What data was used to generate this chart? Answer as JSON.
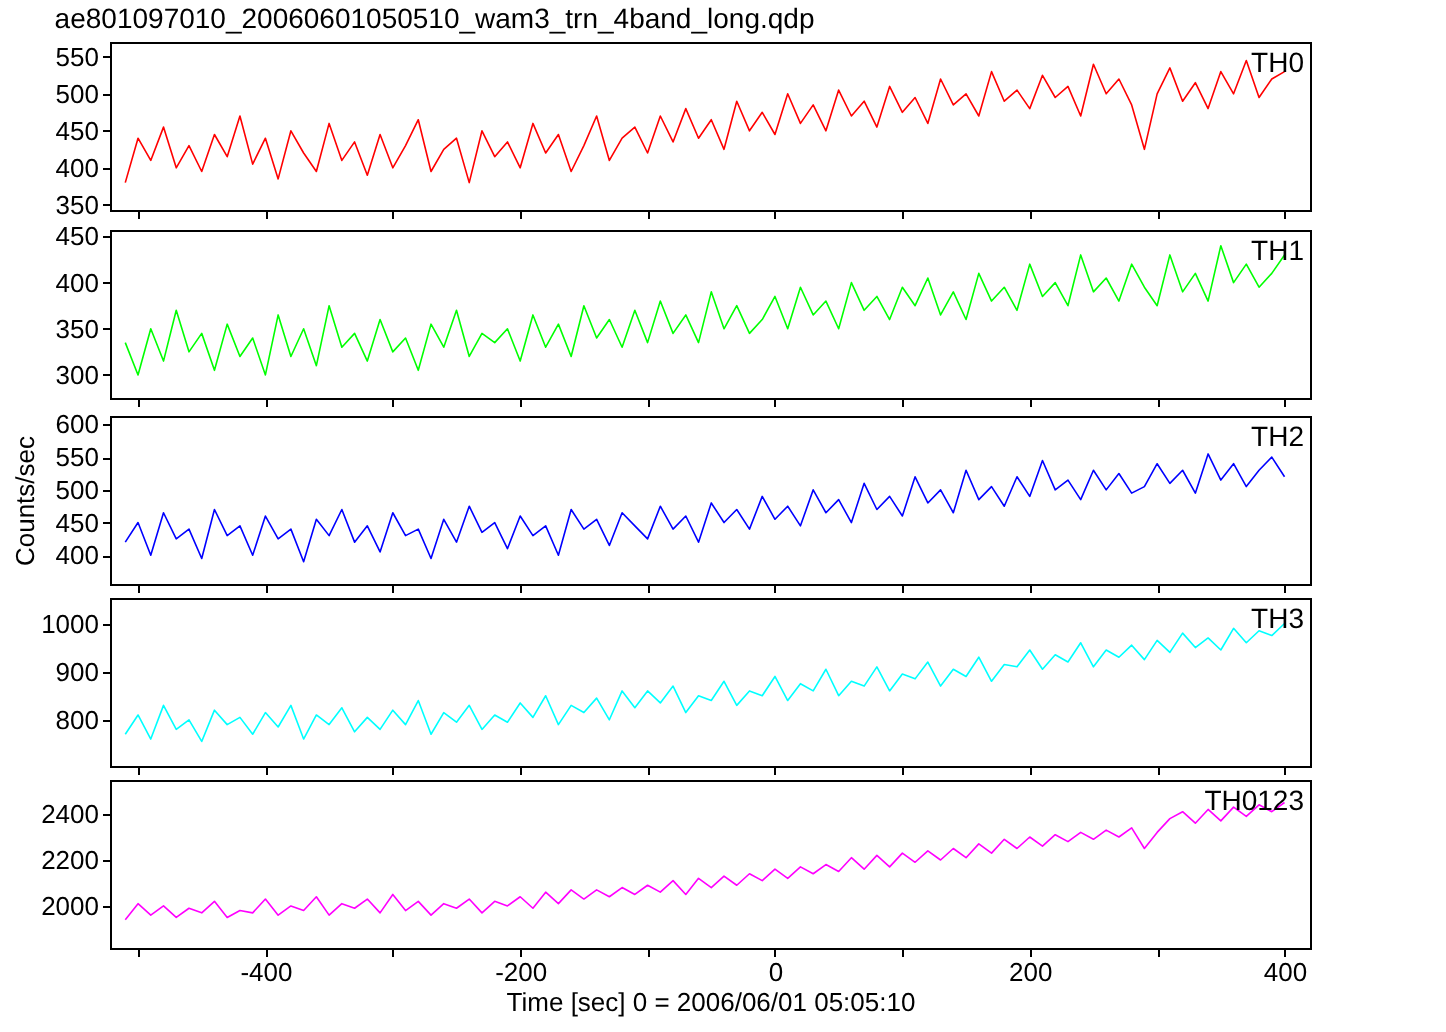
{
  "chart_data": [
    {
      "type": "line",
      "title": "ae801097010_20060601050510_wam3_trn_4band_long.qdp",
      "tick_labels": "y",
      "grid": false,
      "legend": false,
      "marker": "none",
      "line_style": "solid",
      "x": [
        -510,
        -500,
        -490,
        -480,
        -470,
        -460,
        -450,
        -440,
        -430,
        -420,
        -410,
        -400,
        -390,
        -380,
        -370,
        -360,
        -350,
        -340,
        -330,
        -320,
        -310,
        -300,
        -290,
        -280,
        -270,
        -260,
        -250,
        -240,
        -230,
        -220,
        -210,
        -200,
        -190,
        -180,
        -170,
        -160,
        -150,
        -140,
        -130,
        -120,
        -110,
        -100,
        -90,
        -80,
        -70,
        -60,
        -50,
        -40,
        -30,
        -20,
        -10,
        0,
        10,
        20,
        30,
        40,
        50,
        60,
        70,
        80,
        90,
        100,
        110,
        120,
        130,
        140,
        150,
        160,
        170,
        180,
        190,
        200,
        210,
        220,
        230,
        240,
        250,
        260,
        270,
        280,
        290,
        300,
        310,
        320,
        330,
        340,
        350,
        360,
        370,
        380,
        390,
        400
      ],
      "xlim": [
        -522,
        420
      ],
      "xticks": [
        {
          "value": -500,
          "label": null
        },
        -400,
        {
          "value": -300,
          "label": null
        },
        -200,
        {
          "value": -100,
          "label": null
        },
        0,
        {
          "value": 100,
          "label": null
        },
        200,
        {
          "value": 300,
          "label": null
        },
        400
      ],
      "ylim": [
        343,
        570
      ],
      "yticks": [
        350,
        400,
        450,
        500,
        550
      ],
      "series": [
        {
          "name": "TH0",
          "color": "#ff0000",
          "values": [
            380,
            440,
            410,
            455,
            400,
            430,
            395,
            445,
            415,
            470,
            405,
            440,
            385,
            450,
            420,
            395,
            460,
            410,
            435,
            390,
            445,
            400,
            430,
            465,
            395,
            425,
            440,
            380,
            450,
            415,
            435,
            400,
            460,
            420,
            445,
            395,
            430,
            470,
            410,
            440,
            455,
            420,
            470,
            435,
            480,
            440,
            465,
            425,
            490,
            450,
            475,
            445,
            500,
            460,
            485,
            450,
            505,
            470,
            490,
            455,
            510,
            475,
            495,
            460,
            520,
            485,
            500,
            470,
            530,
            490,
            505,
            480,
            525,
            495,
            510,
            470,
            540,
            500,
            520,
            485,
            425,
            500,
            535,
            490,
            515,
            480,
            530,
            500,
            545,
            495,
            520,
            530
          ]
        }
      ]
    },
    {
      "type": "line",
      "tick_labels": "y",
      "grid": false,
      "legend": false,
      "marker": "none",
      "line_style": "solid",
      "x": [
        -510,
        -500,
        -490,
        -480,
        -470,
        -460,
        -450,
        -440,
        -430,
        -420,
        -410,
        -400,
        -390,
        -380,
        -370,
        -360,
        -350,
        -340,
        -330,
        -320,
        -310,
        -300,
        -290,
        -280,
        -270,
        -260,
        -250,
        -240,
        -230,
        -220,
        -210,
        -200,
        -190,
        -180,
        -170,
        -160,
        -150,
        -140,
        -130,
        -120,
        -110,
        -100,
        -90,
        -80,
        -70,
        -60,
        -50,
        -40,
        -30,
        -20,
        -10,
        0,
        10,
        20,
        30,
        40,
        50,
        60,
        70,
        80,
        90,
        100,
        110,
        120,
        130,
        140,
        150,
        160,
        170,
        180,
        190,
        200,
        210,
        220,
        230,
        240,
        250,
        260,
        270,
        280,
        290,
        300,
        310,
        320,
        330,
        340,
        350,
        360,
        370,
        380,
        390,
        400
      ],
      "xlim": [
        -522,
        420
      ],
      "xticks": [
        {
          "value": -500,
          "label": null
        },
        -400,
        {
          "value": -300,
          "label": null
        },
        -200,
        {
          "value": -100,
          "label": null
        },
        0,
        {
          "value": 100,
          "label": null
        },
        200,
        {
          "value": 300,
          "label": null
        },
        400
      ],
      "ylim": [
        275,
        457
      ],
      "yticks": [
        300,
        350,
        400,
        450
      ],
      "series": [
        {
          "name": "TH1",
          "color": "#00ff00",
          "values": [
            335,
            300,
            350,
            315,
            370,
            325,
            345,
            305,
            355,
            320,
            340,
            300,
            365,
            320,
            350,
            310,
            375,
            330,
            345,
            315,
            360,
            325,
            340,
            305,
            355,
            330,
            370,
            320,
            345,
            335,
            350,
            315,
            365,
            330,
            355,
            320,
            375,
            340,
            360,
            330,
            370,
            335,
            380,
            345,
            365,
            335,
            390,
            350,
            375,
            345,
            360,
            385,
            350,
            395,
            365,
            380,
            350,
            400,
            370,
            385,
            360,
            395,
            375,
            405,
            365,
            390,
            360,
            410,
            380,
            395,
            370,
            420,
            385,
            400,
            375,
            430,
            390,
            405,
            380,
            420,
            395,
            375,
            430,
            390,
            410,
            380,
            440,
            400,
            420,
            395,
            410,
            430
          ]
        }
      ]
    },
    {
      "type": "line",
      "ylabel": "Counts/sec",
      "tick_labels": "y",
      "grid": false,
      "legend": false,
      "marker": "none",
      "line_style": "solid",
      "x": [
        -510,
        -500,
        -490,
        -480,
        -470,
        -460,
        -450,
        -440,
        -430,
        -420,
        -410,
        -400,
        -390,
        -380,
        -370,
        -360,
        -350,
        -340,
        -330,
        -320,
        -310,
        -300,
        -290,
        -280,
        -270,
        -260,
        -250,
        -240,
        -230,
        -220,
        -210,
        -200,
        -190,
        -180,
        -170,
        -160,
        -150,
        -140,
        -130,
        -120,
        -110,
        -100,
        -90,
        -80,
        -70,
        -60,
        -50,
        -40,
        -30,
        -20,
        -10,
        0,
        10,
        20,
        30,
        40,
        50,
        60,
        70,
        80,
        90,
        100,
        110,
        120,
        130,
        140,
        150,
        160,
        170,
        180,
        190,
        200,
        210,
        220,
        230,
        240,
        250,
        260,
        270,
        280,
        290,
        300,
        310,
        320,
        330,
        340,
        350,
        360,
        370,
        380,
        390,
        400
      ],
      "xlim": [
        -522,
        420
      ],
      "xticks": [
        {
          "value": -500,
          "label": null
        },
        -400,
        {
          "value": -300,
          "label": null
        },
        -200,
        {
          "value": -100,
          "label": null
        },
        0,
        {
          "value": 100,
          "label": null
        },
        200,
        {
          "value": 300,
          "label": null
        },
        400
      ],
      "ylim": [
        356,
        613
      ],
      "yticks": [
        400,
        450,
        500,
        550,
        600
      ],
      "series": [
        {
          "name": "TH2",
          "color": "#0000ff",
          "values": [
            420,
            450,
            400,
            465,
            425,
            440,
            395,
            470,
            430,
            445,
            400,
            460,
            425,
            440,
            390,
            455,
            430,
            470,
            420,
            445,
            405,
            465,
            430,
            440,
            395,
            455,
            420,
            475,
            435,
            450,
            410,
            460,
            430,
            445,
            400,
            470,
            440,
            455,
            415,
            465,
            445,
            425,
            475,
            440,
            460,
            420,
            480,
            450,
            470,
            440,
            490,
            455,
            475,
            445,
            500,
            465,
            485,
            450,
            510,
            470,
            490,
            460,
            520,
            480,
            500,
            465,
            530,
            485,
            505,
            475,
            520,
            490,
            545,
            500,
            515,
            485,
            530,
            500,
            525,
            495,
            505,
            540,
            510,
            530,
            495,
            555,
            515,
            540,
            505,
            530,
            550,
            520
          ]
        }
      ]
    },
    {
      "type": "line",
      "tick_labels": "y",
      "grid": false,
      "legend": false,
      "marker": "none",
      "line_style": "solid",
      "x": [
        -510,
        -500,
        -490,
        -480,
        -470,
        -460,
        -450,
        -440,
        -430,
        -420,
        -410,
        -400,
        -390,
        -380,
        -370,
        -360,
        -350,
        -340,
        -330,
        -320,
        -310,
        -300,
        -290,
        -280,
        -270,
        -260,
        -250,
        -240,
        -230,
        -220,
        -210,
        -200,
        -190,
        -180,
        -170,
        -160,
        -150,
        -140,
        -130,
        -120,
        -110,
        -100,
        -90,
        -80,
        -70,
        -60,
        -50,
        -40,
        -30,
        -20,
        -10,
        0,
        10,
        20,
        30,
        40,
        50,
        60,
        70,
        80,
        90,
        100,
        110,
        120,
        130,
        140,
        150,
        160,
        170,
        180,
        190,
        200,
        210,
        220,
        230,
        240,
        250,
        260,
        270,
        280,
        290,
        300,
        310,
        320,
        330,
        340,
        350,
        360,
        370,
        380,
        390,
        400
      ],
      "xlim": [
        -522,
        420
      ],
      "xticks": [
        {
          "value": -500,
          "label": null
        },
        -400,
        {
          "value": -300,
          "label": null
        },
        -200,
        {
          "value": -100,
          "label": null
        },
        0,
        {
          "value": 100,
          "label": null
        },
        200,
        {
          "value": 300,
          "label": null
        },
        400
      ],
      "ylim": [
        704,
        1053
      ],
      "yticks": [
        800,
        900,
        1000
      ],
      "series": [
        {
          "name": "TH3",
          "color": "#00ffff",
          "values": [
            770,
            810,
            760,
            830,
            780,
            800,
            755,
            820,
            790,
            805,
            770,
            815,
            785,
            830,
            760,
            810,
            790,
            825,
            775,
            805,
            780,
            820,
            790,
            840,
            770,
            815,
            795,
            830,
            780,
            810,
            795,
            835,
            805,
            850,
            790,
            830,
            815,
            845,
            800,
            860,
            825,
            860,
            835,
            870,
            815,
            850,
            840,
            880,
            830,
            860,
            850,
            890,
            840,
            875,
            860,
            905,
            850,
            880,
            870,
            910,
            860,
            895,
            885,
            920,
            870,
            905,
            890,
            930,
            880,
            915,
            910,
            945,
            905,
            935,
            920,
            960,
            910,
            945,
            930,
            955,
            925,
            965,
            940,
            980,
            950,
            970,
            945,
            990,
            960,
            985,
            975,
            1000
          ]
        }
      ]
    },
    {
      "type": "line",
      "xlabel": "Time [sec] 0 = 2006/06/01 05:05:10",
      "grid": false,
      "legend": false,
      "marker": "none",
      "line_style": "solid",
      "x": [
        -510,
        -500,
        -490,
        -480,
        -470,
        -460,
        -450,
        -440,
        -430,
        -420,
        -410,
        -400,
        -390,
        -380,
        -370,
        -360,
        -350,
        -340,
        -330,
        -320,
        -310,
        -300,
        -290,
        -280,
        -270,
        -260,
        -250,
        -240,
        -230,
        -220,
        -210,
        -200,
        -190,
        -180,
        -170,
        -160,
        -150,
        -140,
        -130,
        -120,
        -110,
        -100,
        -90,
        -80,
        -70,
        -60,
        -50,
        -40,
        -30,
        -20,
        -10,
        0,
        10,
        20,
        30,
        40,
        50,
        60,
        70,
        80,
        90,
        100,
        110,
        120,
        130,
        140,
        150,
        160,
        170,
        180,
        190,
        200,
        210,
        220,
        230,
        240,
        250,
        260,
        270,
        280,
        290,
        300,
        310,
        320,
        330,
        340,
        350,
        360,
        370,
        380,
        390,
        400
      ],
      "xlim": [
        -522,
        420
      ],
      "xticks": [
        {
          "value": -500,
          "label": null
        },
        -400,
        {
          "value": -300,
          "label": null
        },
        -200,
        {
          "value": -100,
          "label": null
        },
        0,
        {
          "value": 100,
          "label": null
        },
        200,
        {
          "value": 300,
          "label": null
        },
        400
      ],
      "ylim": [
        1817,
        2548
      ],
      "yticks": [
        2000,
        2200,
        2400
      ],
      "series": [
        {
          "name": "TH0123",
          "color": "#ff00ff",
          "values": [
            1940,
            2010,
            1960,
            2000,
            1950,
            1990,
            1970,
            2020,
            1950,
            1980,
            1970,
            2030,
            1960,
            2000,
            1980,
            2040,
            1960,
            2010,
            1990,
            2030,
            1970,
            2050,
            1980,
            2020,
            1960,
            2010,
            1990,
            2030,
            1970,
            2020,
            2000,
            2040,
            1990,
            2060,
            2010,
            2070,
            2030,
            2070,
            2040,
            2080,
            2050,
            2090,
            2060,
            2110,
            2050,
            2120,
            2080,
            2130,
            2090,
            2140,
            2110,
            2160,
            2120,
            2170,
            2140,
            2180,
            2150,
            2210,
            2160,
            2220,
            2170,
            2230,
            2190,
            2240,
            2200,
            2250,
            2210,
            2270,
            2230,
            2290,
            2250,
            2300,
            2260,
            2310,
            2280,
            2320,
            2290,
            2330,
            2300,
            2340,
            2250,
            2320,
            2380,
            2410,
            2360,
            2420,
            2370,
            2430,
            2390,
            2440,
            2410,
            2450
          ]
        }
      ]
    }
  ]
}
